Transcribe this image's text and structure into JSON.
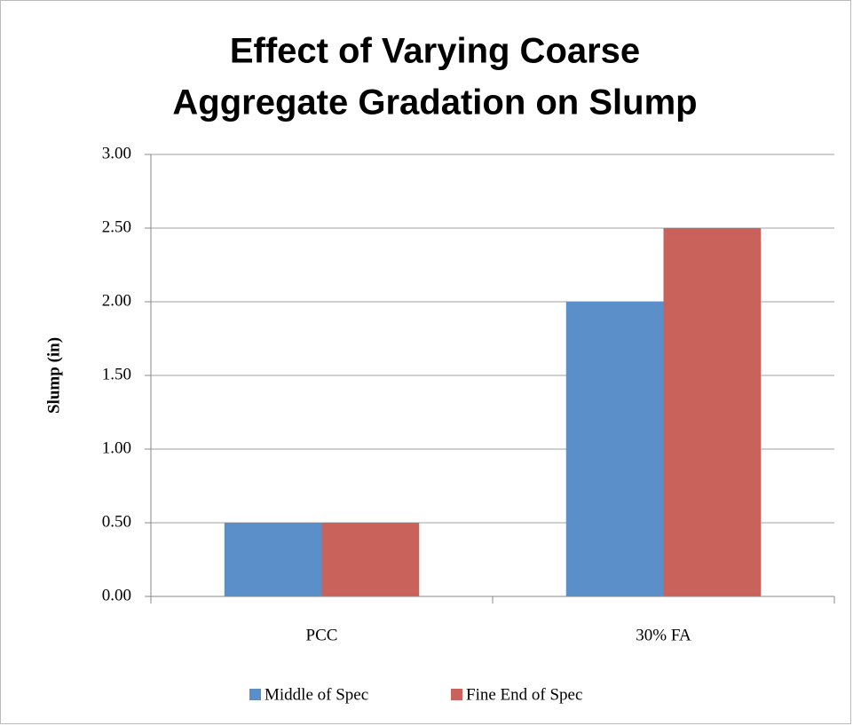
{
  "chart_data": {
    "type": "bar",
    "title": [
      "Effect of Varying Coarse",
      "Aggregate Gradation on Slump"
    ],
    "y_label": "Slump (in)",
    "categories": [
      "PCC",
      "30% FA"
    ],
    "series": [
      {
        "name": "Middle of Spec",
        "color": "#5b8fc9",
        "values": [
          0.5,
          2.0
        ]
      },
      {
        "name": "Fine End of Spec",
        "color": "#c9625a",
        "values": [
          0.5,
          2.5
        ]
      }
    ],
    "ylim": [
      0,
      3
    ],
    "yticks": [
      {
        "value": 0,
        "label": "0.00"
      },
      {
        "value": 0.5,
        "label": "0.50"
      },
      {
        "value": 1,
        "label": "1.00"
      },
      {
        "value": 1.5,
        "label": "1.50"
      },
      {
        "value": 2,
        "label": "2.00"
      },
      {
        "value": 2.5,
        "label": "2.50"
      },
      {
        "value": 3,
        "label": "3.00"
      }
    ],
    "grid": true,
    "legend": "bottom"
  }
}
